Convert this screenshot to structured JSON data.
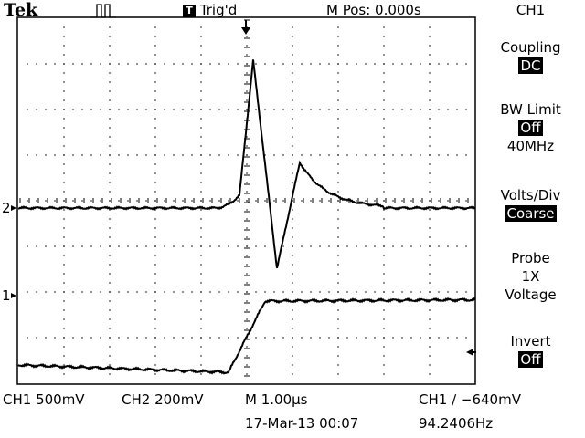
{
  "header": {
    "brand": "Tek",
    "trigger_status": "Trig'd",
    "trigger_icon_letter": "T",
    "acq_icon": "run-pulse-icon",
    "m_pos": "M Pos: 0.000s",
    "channel": "CH1"
  },
  "side_menu": {
    "coupling": {
      "label": "Coupling",
      "value": "DC"
    },
    "bw_limit": {
      "label": "BW Limit",
      "value": "Off",
      "extra": "40MHz"
    },
    "volts_div": {
      "label": "Volts/Div",
      "value": "Coarse"
    },
    "probe": {
      "label": "Probe",
      "line2": "1X",
      "line3": "Voltage"
    },
    "invert": {
      "label": "Invert",
      "value": "Off"
    }
  },
  "markers": {
    "ch2": "2",
    "ch1": "1"
  },
  "footer": {
    "ch1_scale": "CH1  500mV",
    "ch2_scale": "CH2  200mV",
    "timebase": "M 1.00µs",
    "trigger": "CH1 ∕ −640mV",
    "datetime": "17-Mar-13 00:07",
    "frequency": "94.2406Hz"
  },
  "colors": {
    "trace": "#000000",
    "grid": "#000000",
    "background": "#ffffff"
  }
}
